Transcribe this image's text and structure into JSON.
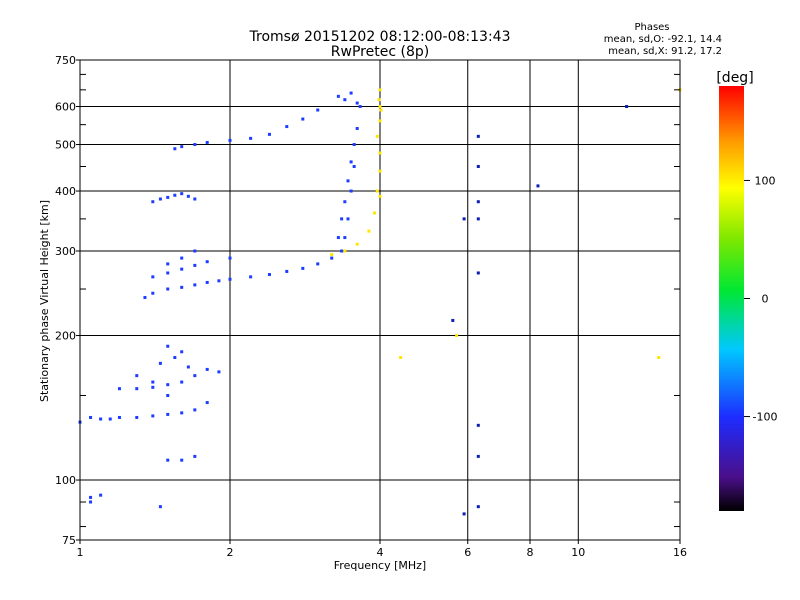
{
  "chart_data": {
    "type": "scatter",
    "title": "Tromsø 20151202 08:12:00-08:13:43",
    "subtitle": "RwPretec (8p)",
    "stats": {
      "heading": "Phases",
      "line1": "mean, sd,O: -92.1, 14.4",
      "line2": "mean, sd,X:  91.2, 17.2"
    },
    "xlabel": "Frequency [MHz]",
    "ylabel": "Stationary phase Virtual Height [km]",
    "xscale": "log",
    "yscale": "log",
    "xlim": [
      1,
      16
    ],
    "ylim": [
      75,
      750
    ],
    "x_ticks": [
      1,
      2,
      4,
      6,
      8,
      10,
      16
    ],
    "x_tick_labels": [
      "1",
      "2",
      "4",
      "6",
      "8",
      "10",
      "16"
    ],
    "y_ticks": [
      75,
      100,
      200,
      300,
      400,
      500,
      600,
      750
    ],
    "y_tick_labels": [
      "75",
      "100",
      "200",
      "300",
      "400",
      "500",
      "600",
      "750"
    ],
    "grid": true,
    "colorbar": {
      "label": "[deg]",
      "range": [
        -180,
        180
      ],
      "ticks": [
        100,
        0,
        -100
      ],
      "tick_labels": [
        "100",
        "0",
        "-100"
      ]
    },
    "series": [
      {
        "mode": "O",
        "phase": -100,
        "color": "#1e3cff",
        "groups": [
          {
            "note": "lower E/Es trace",
            "points": [
              [
                1.0,
                132
              ],
              [
                1.05,
                135
              ],
              [
                1.1,
                134
              ],
              [
                1.15,
                134
              ],
              [
                1.2,
                135
              ],
              [
                1.3,
                135
              ],
              [
                1.4,
                136
              ],
              [
                1.5,
                137
              ],
              [
                1.6,
                138
              ],
              [
                1.7,
                140
              ],
              [
                1.8,
                145
              ]
            ]
          },
          {
            "note": "mid E layer blob",
            "points": [
              [
                1.2,
                155
              ],
              [
                1.3,
                155
              ],
              [
                1.4,
                156
              ],
              [
                1.5,
                158
              ],
              [
                1.6,
                160
              ],
              [
                1.7,
                165
              ],
              [
                1.8,
                170
              ],
              [
                1.9,
                168
              ],
              [
                1.45,
                175
              ],
              [
                1.55,
                180
              ],
              [
                1.5,
                190
              ],
              [
                1.6,
                185
              ],
              [
                1.5,
                150
              ],
              [
                1.4,
                160
              ],
              [
                1.3,
                165
              ],
              [
                1.65,
                172
              ]
            ]
          },
          {
            "note": "F trace",
            "points": [
              [
                1.35,
                240
              ],
              [
                1.4,
                245
              ],
              [
                1.5,
                250
              ],
              [
                1.6,
                252
              ],
              [
                1.7,
                255
              ],
              [
                1.8,
                258
              ],
              [
                1.9,
                260
              ],
              [
                2.0,
                262
              ],
              [
                2.2,
                265
              ],
              [
                2.4,
                268
              ],
              [
                2.6,
                272
              ],
              [
                2.8,
                276
              ],
              [
                3.0,
                282
              ],
              [
                3.2,
                290
              ],
              [
                3.35,
                300
              ],
              [
                3.4,
                320
              ],
              [
                3.45,
                350
              ],
              [
                3.5,
                400
              ],
              [
                3.55,
                450
              ]
            ]
          },
          {
            "note": "F upper trace",
            "points": [
              [
                1.4,
                265
              ],
              [
                1.5,
                270
              ],
              [
                1.6,
                275
              ],
              [
                1.7,
                280
              ],
              [
                1.8,
                285
              ],
              [
                2.0,
                290
              ],
              [
                1.6,
                290
              ],
              [
                1.7,
                300
              ],
              [
                1.5,
                282
              ]
            ]
          },
          {
            "note": "Echo 390",
            "points": [
              [
                1.4,
                380
              ],
              [
                1.45,
                385
              ],
              [
                1.5,
                388
              ],
              [
                1.55,
                392
              ],
              [
                1.6,
                395
              ],
              [
                1.65,
                390
              ],
              [
                1.7,
                385
              ]
            ]
          },
          {
            "note": "Echo 490-580",
            "points": [
              [
                1.55,
                490
              ],
              [
                1.6,
                495
              ],
              [
                1.7,
                500
              ],
              [
                1.8,
                505
              ],
              [
                2.0,
                510
              ],
              [
                2.2,
                515
              ],
              [
                2.4,
                525
              ],
              [
                2.6,
                545
              ],
              [
                2.8,
                565
              ],
              [
                3.0,
                590
              ]
            ]
          },
          {
            "note": "F2 column",
            "points": [
              [
                3.3,
                320
              ],
              [
                3.35,
                350
              ],
              [
                3.4,
                380
              ],
              [
                3.45,
                420
              ],
              [
                3.5,
                460
              ],
              [
                3.55,
                500
              ],
              [
                3.6,
                540
              ],
              [
                3.65,
                600
              ],
              [
                3.3,
                630
              ],
              [
                3.4,
                620
              ],
              [
                3.5,
                640
              ],
              [
                3.6,
                610
              ]
            ]
          },
          {
            "note": "low isolated",
            "points": [
              [
                1.05,
                92
              ],
              [
                1.1,
                93
              ],
              [
                1.05,
                90
              ],
              [
                1.45,
                88
              ],
              [
                1.5,
                110
              ],
              [
                1.6,
                110
              ],
              [
                1.7,
                112
              ]
            ]
          }
        ]
      },
      {
        "mode": "X",
        "phase": 100,
        "color": "#ffe600",
        "groups": [
          {
            "note": "X trace low",
            "points": [
              [
                3.2,
                295
              ],
              [
                3.4,
                300
              ],
              [
                3.6,
                310
              ],
              [
                3.8,
                330
              ],
              [
                3.9,
                360
              ],
              [
                4.0,
                390
              ]
            ]
          },
          {
            "note": "X column",
            "points": [
              [
                3.95,
                400
              ],
              [
                4.0,
                440
              ],
              [
                4.0,
                480
              ],
              [
                3.95,
                520
              ],
              [
                4.0,
                560
              ],
              [
                4.0,
                600
              ],
              [
                3.98,
                620
              ],
              [
                4.02,
                590
              ],
              [
                4.0,
                650
              ]
            ]
          },
          {
            "note": "scattered X",
            "points": [
              [
                4.4,
                180
              ],
              [
                5.7,
                200
              ],
              [
                14.5,
                180
              ],
              [
                16,
                650
              ]
            ]
          }
        ]
      },
      {
        "mode": "sparse",
        "phase": -80,
        "color": "#0a1eb4",
        "groups": [
          {
            "note": "6.3 MHz column",
            "points": [
              [
                6.3,
                270
              ],
              [
                6.3,
                350
              ],
              [
                6.3,
                380
              ],
              [
                6.3,
                130
              ],
              [
                6.3,
                112
              ],
              [
                6.3,
                450
              ],
              [
                6.3,
                520
              ]
            ]
          },
          {
            "note": "misc",
            "points": [
              [
                5.9,
                350
              ],
              [
                5.9,
                85
              ],
              [
                5.6,
                215
              ],
              [
                8.3,
                410
              ],
              [
                12.5,
                600
              ],
              [
                6.3,
                88
              ]
            ]
          }
        ]
      }
    ]
  }
}
